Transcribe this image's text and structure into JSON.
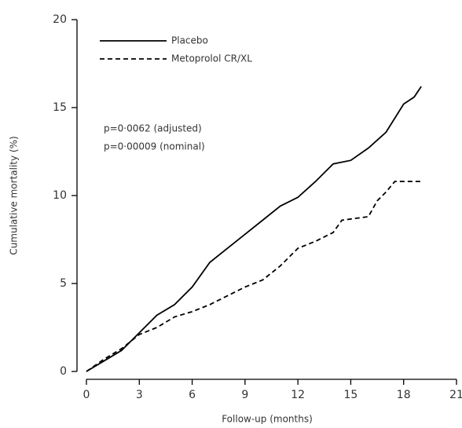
{
  "chart_data": {
    "type": "line",
    "xlabel": "Follow-up (months)",
    "ylabel": "Cumulative mortality (%)",
    "annotations": [
      "p=0·0062 (adjusted)",
      "p=0·00009 (nominal)"
    ],
    "xlim": [
      0,
      21
    ],
    "xticks": [
      0,
      3,
      6,
      9,
      12,
      15,
      18,
      21
    ],
    "ylim": [
      0,
      20
    ],
    "yticks": [
      0,
      5,
      10,
      15,
      20
    ],
    "series": [
      {
        "name": "Placebo",
        "color": "#000000",
        "dash": "solid",
        "x": [
          0,
          1,
          2,
          3,
          4,
          5,
          6,
          7,
          8,
          9,
          10,
          11,
          12,
          13,
          14,
          15,
          16,
          17,
          18,
          18.6,
          19
        ],
        "values": [
          0,
          0.6,
          1.2,
          2.2,
          3.2,
          3.8,
          4.8,
          6.2,
          7,
          7.8,
          8.6,
          9.4,
          9.9,
          10.8,
          11.8,
          12,
          12.7,
          13.6,
          15.2,
          15.6,
          16.2
        ]
      },
      {
        "name": "Metoprolol CR/XL",
        "color": "#000000",
        "dash": "dashed",
        "x": [
          0,
          1,
          2,
          3,
          4,
          5,
          6,
          7,
          8,
          9,
          10,
          11,
          12,
          13,
          14,
          14.5,
          16,
          16.5,
          17,
          17.5,
          19
        ],
        "values": [
          0,
          0.7,
          1.3,
          2.1,
          2.5,
          3.1,
          3.4,
          3.8,
          4.3,
          4.8,
          5.2,
          6,
          7,
          7.4,
          7.9,
          8.6,
          8.8,
          9.7,
          10.2,
          10.8,
          10.8
        ]
      }
    ]
  }
}
